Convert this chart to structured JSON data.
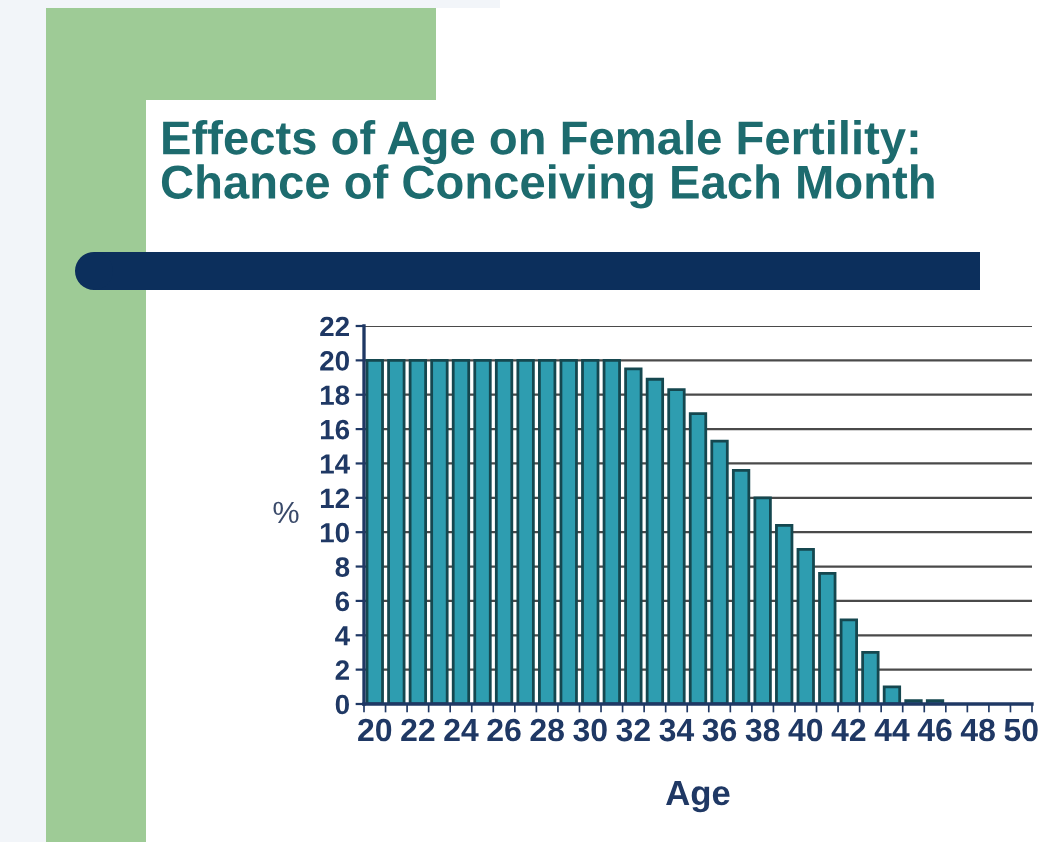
{
  "chart_data": {
    "type": "bar",
    "title": "Effects of Age on Female Fertility:\nChance of Conceiving Each Month",
    "xlabel": "Age",
    "ylabel": "%",
    "categories": [
      "20",
      null,
      "22",
      null,
      "24",
      null,
      "26",
      null,
      "28",
      null,
      "30",
      null,
      "32",
      null,
      "34",
      null,
      "36",
      null,
      "38",
      null,
      "40",
      null,
      "42",
      null,
      "44",
      null,
      "46",
      null,
      "48",
      null,
      "50"
    ],
    "values": [
      20,
      20,
      20,
      20,
      20,
      20,
      20,
      20,
      20,
      20,
      20,
      20,
      19.5,
      18.9,
      18.3,
      16.9,
      15.3,
      13.6,
      12.0,
      10.4,
      9.0,
      7.6,
      4.9,
      3.0,
      1.0,
      0.2,
      0.2,
      null,
      null,
      null,
      null
    ],
    "color": "#2e9db0",
    "ylim": [
      0,
      22
    ],
    "yticks": [
      0,
      2,
      4,
      6,
      8,
      10,
      12,
      14,
      16,
      18,
      20,
      22
    ],
    "grid": "y"
  }
}
